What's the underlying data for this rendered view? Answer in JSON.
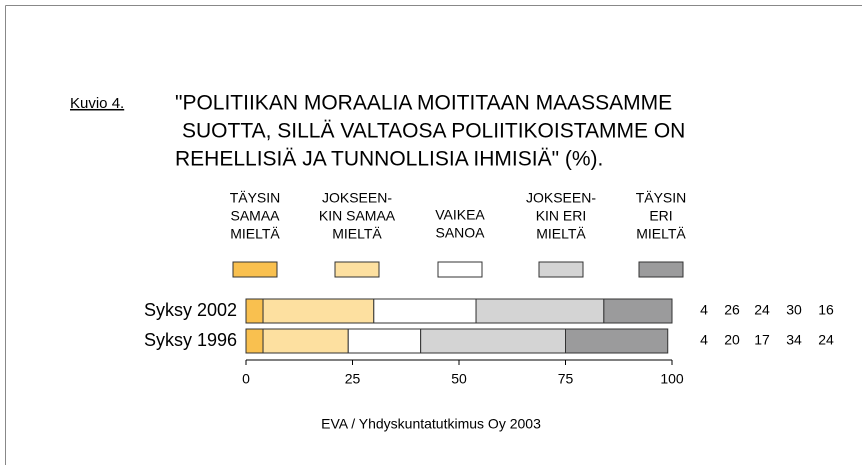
{
  "chart_data": {
    "type": "stacked_barh",
    "label": "Kuvio 4.",
    "title": [
      "\"POLITIIKAN MORAALIA MOITITAAN MAASSAMME",
      "SUOTTA, SILLÄ VALTAOSA POLIITIKOISTAMME ON",
      "REHELLISIÄ JA TUNNOLLISIA IHMISIÄ\" (%)."
    ],
    "categories": [
      "Syksy 2002",
      "Syksy 1996"
    ],
    "series": [
      {
        "name": [
          "TÄYSIN",
          "SAMAA",
          "MIELTÄ"
        ],
        "color": "#f9c04f",
        "values": [
          4,
          4
        ]
      },
      {
        "name": [
          "JOKSEEN-",
          "KIN SAMAA",
          "MIELTÄ"
        ],
        "color": "#fde0a0",
        "values": [
          26,
          20
        ]
      },
      {
        "name": [
          "VAIKEA",
          "SANOA"
        ],
        "color": "#ffffff",
        "values": [
          24,
          17
        ]
      },
      {
        "name": [
          "JOKSEEN-",
          "KIN ERI",
          "MIELTÄ"
        ],
        "color": "#d4d4d4",
        "values": [
          30,
          34
        ]
      },
      {
        "name": [
          "TÄYSIN",
          "ERI",
          "MIELTÄ"
        ],
        "color": "#9b9b9c",
        "values": [
          16,
          24
        ]
      }
    ],
    "xlim": [
      0,
      100
    ],
    "xticks": [
      0,
      25,
      50,
      75,
      100
    ],
    "source": "EVA / Yhdyskuntatutkimus Oy 2003"
  }
}
